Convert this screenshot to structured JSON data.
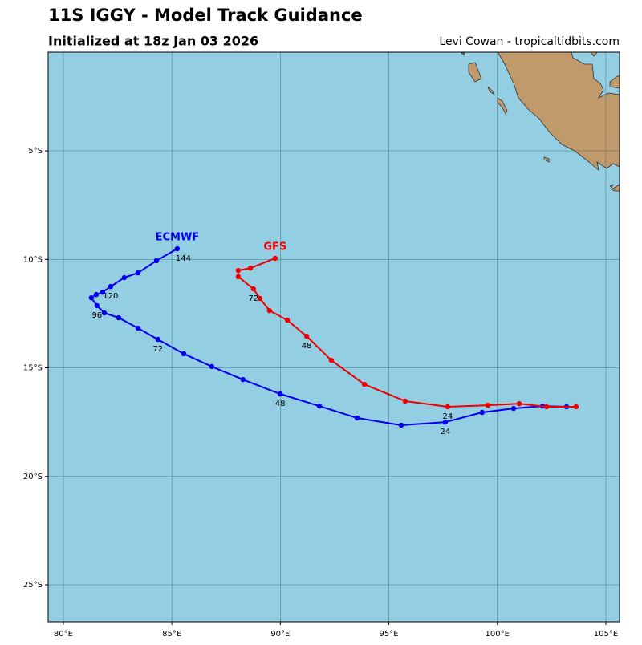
{
  "chart_data": {
    "type": "line",
    "title": "11S IGGY - Model Track Guidance",
    "subtitle": "Initialized at 18z Jan 03 2026",
    "credit": "Levi Cowan - tropicaltidbits.com",
    "xlim": [
      79.3,
      105.63
    ],
    "ylim": [
      -26.7,
      -0.45
    ],
    "xticks": [
      {
        "value": 80,
        "label": "80°E"
      },
      {
        "value": 85,
        "label": "85°E"
      },
      {
        "value": 90,
        "label": "90°E"
      },
      {
        "value": 95,
        "label": "95°E"
      },
      {
        "value": 100,
        "label": "100°E"
      },
      {
        "value": 105,
        "label": "105°E"
      }
    ],
    "yticks": [
      {
        "value": -5,
        "label": "5°S"
      },
      {
        "value": -10,
        "label": "10°S"
      },
      {
        "value": -15,
        "label": "15°S"
      },
      {
        "value": -20,
        "label": "20°S"
      },
      {
        "value": -25,
        "label": "25°S"
      }
    ],
    "grid": true,
    "series": [
      {
        "name": "ECMWF",
        "color": "#0000ee",
        "x": [
          103.19,
          102.08,
          100.75,
          99.3,
          97.6,
          95.57,
          93.54,
          91.8,
          89.99,
          88.28,
          86.84,
          85.55,
          84.36,
          83.44,
          82.55,
          81.89,
          81.55,
          81.29,
          81.52,
          81.81,
          82.18,
          82.81,
          83.44,
          84.29,
          85.25
        ],
        "values": [
          -16.79,
          -16.76,
          -16.87,
          -17.05,
          -17.5,
          -17.64,
          -17.31,
          -16.76,
          -16.2,
          -15.54,
          -14.94,
          -14.35,
          -13.69,
          -13.17,
          -12.69,
          -12.47,
          -12.13,
          -11.77,
          -11.62,
          -11.51,
          -11.25,
          -10.84,
          -10.62,
          -10.06,
          -9.51
        ],
        "labels": [
          null,
          null,
          null,
          null,
          "24",
          null,
          null,
          null,
          "48",
          null,
          null,
          null,
          "72",
          null,
          null,
          null,
          "96",
          null,
          null,
          null,
          "120",
          null,
          null,
          null,
          "144"
        ]
      },
      {
        "name": "GFS",
        "color": "#ee0000",
        "x": [
          103.63,
          102.26,
          101.01,
          99.56,
          97.71,
          95.75,
          93.87,
          92.35,
          91.21,
          90.32,
          89.5,
          89.06,
          88.76,
          88.06,
          88.06,
          88.62,
          89.76
        ],
        "values": [
          -16.79,
          -16.79,
          -16.65,
          -16.72,
          -16.79,
          -16.53,
          -15.76,
          -14.65,
          -13.54,
          -12.8,
          -12.36,
          -11.8,
          -11.36,
          -10.8,
          -10.51,
          -10.4,
          -9.95
        ],
        "labels": [
          null,
          null,
          null,
          null,
          "24",
          null,
          null,
          null,
          "48",
          null,
          null,
          null,
          "72",
          null,
          null,
          null,
          null
        ]
      }
    ]
  }
}
